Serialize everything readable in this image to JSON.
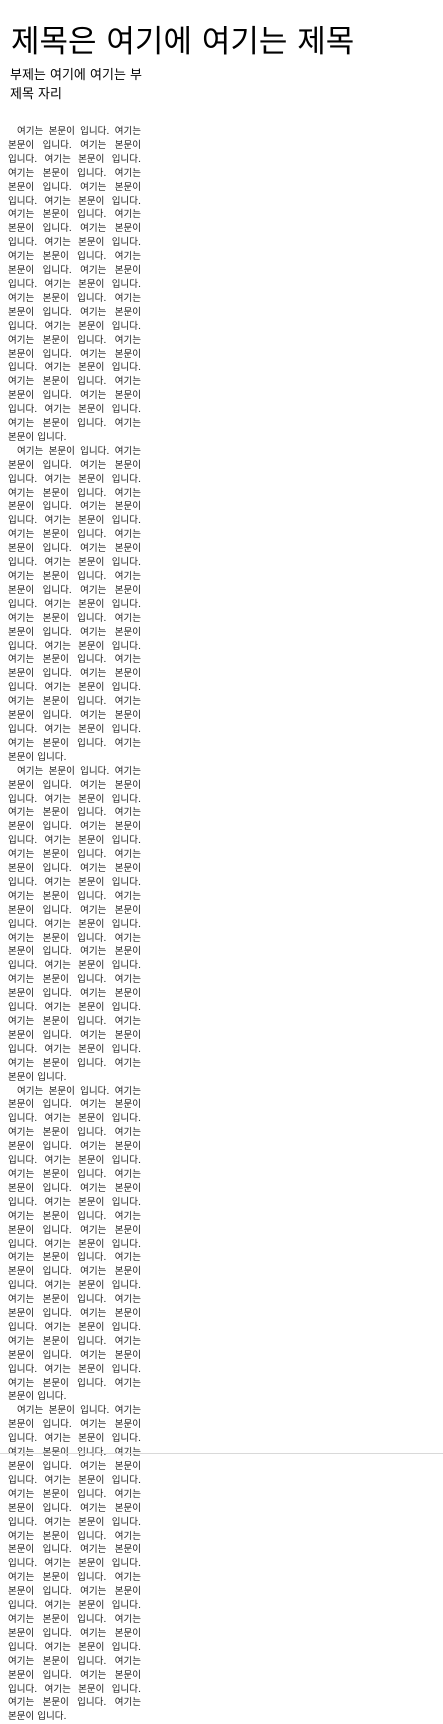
{
  "document": {
    "title": "제목은 여기에 여기는 제목",
    "subtitle": "부제는 여기에 여기는 부제목 자리",
    "paragraphs": [
      "여기는 본문이 입니다. 여기는 본문이 입니다. 여기는 본문이 입니다. 여기는 본문이 입니다. 여기는 본문이 입니다. 여기는 본문이 입니다. 여기는 본문이 입니다. 여기는 본문이 입니다. 여기는 본문이 입니다. 여기는 본문이 입니다. 여기는 본문이 입니다. 여기는 본문이 입니다. 여기는 본문이 입니다. 여기는 본문이 입니다. 여기는 본문이 입니다. 여기는 본문이 입니다. 여기는 본문이 입니다. 여기는 본문이 입니다. 여기는 본문이 입니다. 여기는 본문이 입니다. 여기는 본문이 입니다. 여기는 본문이 입니다. 여기는 본문이 입니다. 여기는 본문이 입니다. 여기는 본문이 입니다. 여기는 본문이 입니다. 여기는 본문이 입니다. 여기는 본문이 입니다. 여기는 본문이 입니다. 여기는 본문이 입니다.",
      "여기는 본문이 입니다. 여기는 본문이 입니다. 여기는 본문이 입니다. 여기는 본문이 입니다. 여기는 본문이 입니다. 여기는 본문이 입니다. 여기는 본문이 입니다. 여기는 본문이 입니다. 여기는 본문이 입니다. 여기는 본문이 입니다. 여기는 본문이 입니다. 여기는 본문이 입니다. 여기는 본문이 입니다. 여기는 본문이 입니다. 여기는 본문이 입니다. 여기는 본문이 입니다. 여기는 본문이 입니다. 여기는 본문이 입니다. 여기는 본문이 입니다. 여기는 본문이 입니다. 여기는 본문이 입니다. 여기는 본문이 입니다. 여기는 본문이 입니다. 여기는 본문이 입니다. 여기는 본문이 입니다. 여기는 본문이 입니다. 여기는 본문이 입니다. 여기는 본문이 입니다. 여기는 본문이 입니다. 여기는 본문이 입니다.",
      "여기는 본문이 입니다. 여기는 본문이 입니다. 여기는 본문이 입니다. 여기는 본문이 입니다. 여기는 본문이 입니다. 여기는 본문이 입니다. 여기는 본문이 입니다. 여기는 본문이 입니다. 여기는 본문이 입니다. 여기는 본문이 입니다. 여기는 본문이 입니다. 여기는 본문이 입니다. 여기는 본문이 입니다. 여기는 본문이 입니다. 여기는 본문이 입니다. 여기는 본문이 입니다. 여기는 본문이 입니다. 여기는 본문이 입니다. 여기는 본문이 입니다. 여기는 본문이 입니다. 여기는 본문이 입니다. 여기는 본문이 입니다. 여기는 본문이 입니다. 여기는 본문이 입니다. 여기는 본문이 입니다. 여기는 본문이 입니다. 여기는 본문이 입니다. 여기는 본문이 입니다. 여기는 본문이 입니다. 여기는 본문이 입니다.",
      "여기는 본문이 입니다. 여기는 본문이 입니다. 여기는 본문이 입니다. 여기는 본문이 입니다. 여기는 본문이 입니다. 여기는 본문이 입니다. 여기는 본문이 입니다. 여기는 본문이 입니다. 여기는 본문이 입니다. 여기는 본문이 입니다. 여기는 본문이 입니다. 여기는 본문이 입니다. 여기는 본문이 입니다. 여기는 본문이 입니다. 여기는 본문이 입니다. 여기는 본문이 입니다. 여기는 본문이 입니다. 여기는 본문이 입니다. 여기는 본문이 입니다. 여기는 본문이 입니다. 여기는 본문이 입니다. 여기는 본문이 입니다. 여기는 본문이 입니다. 여기는 본문이 입니다. 여기는 본문이 입니다. 여기는 본문이 입니다. 여기는 본문이 입니다. 여기는 본문이 입니다. 여기는 본문이 입니다. 여기는 본문이 입니다.",
      "여기는 본문이 입니다. 여기는 본문이 입니다. 여기는 본문이 입니다. 여기는 본문이 입니다. 여기는 본문이 입니다. 여기는 본문이 입니다. 여기는 본문이 입니다. 여기는 본문이 입니다. 여기는 본문이 입니다. 여기는 본문이 입니다. 여기는 본문이 입니다. 여기는 본문이 입니다. 여기는 본문이 입니다. 여기는 본문이 입니다. 여기는 본문이 입니다. 여기는 본문이 입니다. 여기는 본문이 입니다. 여기는 본문이 입니다. 여기는 본문이 입니다. 여기는 본문이 입니다. 여기는 본문이 입니다. 여기는 본문이 입니다. 여기는 본문이 입니다. 여기는 본문이 입니다. 여기는 본문이 입니다. 여기는 본문이 입니다. 여기는 본문이 입니다. 여기는 본문이 입니다. 여기는 본문이 입니다. 여기는 본문이 입니다."
    ]
  }
}
